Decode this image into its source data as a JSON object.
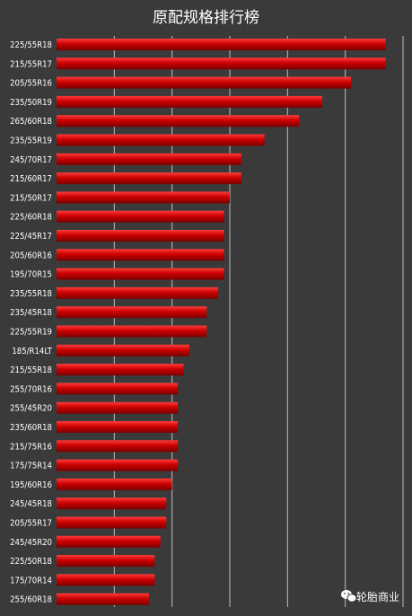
{
  "chart_data": {
    "type": "bar",
    "orientation": "horizontal",
    "title": "原配规格排行榜",
    "categories": [
      "225/55R18",
      "215/55R17",
      "205/55R16",
      "235/50R19",
      "265/60R18",
      "235/55R19",
      "245/70R17",
      "215/60R17",
      "215/50R17",
      "225/60R18",
      "225/45R17",
      "205/60R16",
      "195/70R15",
      "235/55R18",
      "235/45R18",
      "225/55R19",
      "185/R14LT",
      "215/55R18",
      "255/70R16",
      "255/45R20",
      "235/60R18",
      "215/75R16",
      "175/75R14",
      "195/60R16",
      "245/45R18",
      "205/55R17",
      "245/45R20",
      "225/50R18",
      "175/70R14",
      "255/60R18"
    ],
    "values": [
      57,
      57,
      51,
      46,
      42,
      36,
      32,
      32,
      30,
      29,
      29,
      29,
      29,
      28,
      26,
      26,
      23,
      22,
      21,
      21,
      21,
      21,
      21,
      20,
      19,
      19,
      18,
      17,
      17,
      16
    ],
    "xlim": [
      0,
      60
    ],
    "grid": true,
    "bar_color": "#cc0000",
    "bar_highlight": "#ff3b3b",
    "background": "#3a3a3a",
    "gridline_color": "#bdbdbd"
  },
  "watermark": {
    "icon": "wechat-icon",
    "text": "轮胎商业"
  }
}
